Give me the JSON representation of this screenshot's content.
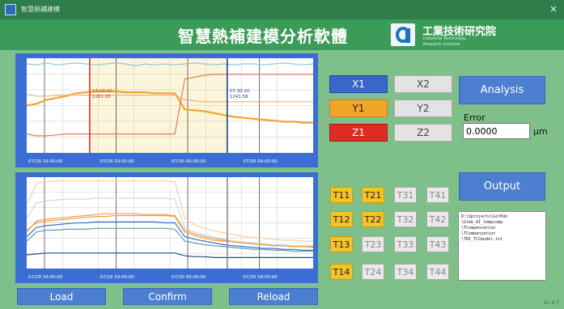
{
  "window": {
    "title": "智慧熱補建模",
    "close_glyph": "×"
  },
  "header": {
    "app_title": "智慧熱補建模分析軟體",
    "org_name": "工業技術研究院",
    "org_en_line1": "Industrial Technology",
    "org_en_line2": "Research Institute"
  },
  "axis_buttons": {
    "x1": "X1",
    "x2": "X2",
    "y1": "Y1",
    "y2": "Y2",
    "z1": "Z1",
    "z2": "Z2"
  },
  "colors": {
    "x1": "#3867c8",
    "y1": "#f2a52a",
    "z1": "#e02b24",
    "active_t": "#f2c32a",
    "button": "#4c7fd0"
  },
  "analysis_label": "Analysis",
  "error": {
    "label": "Error",
    "value": "0.0000",
    "unit": "μm"
  },
  "output_label": "Output",
  "output_lines": [
    "D:\\Sprojects\\GitHub",
    "\\Gtek_AI_tempcomp",
    "\\TCompensation",
    "\\TCompensation",
    "\\TRI_TCCmodel.txt"
  ],
  "t_buttons": [
    {
      "label": "T11",
      "active": true
    },
    {
      "label": "T21",
      "active": true
    },
    {
      "label": "T31",
      "active": false
    },
    {
      "label": "T41",
      "active": false
    },
    {
      "label": "T12",
      "active": true
    },
    {
      "label": "T22",
      "active": true
    },
    {
      "label": "T32",
      "active": false
    },
    {
      "label": "T42",
      "active": false
    },
    {
      "label": "T13",
      "active": true
    },
    {
      "label": "T23",
      "active": false
    },
    {
      "label": "T33",
      "active": false
    },
    {
      "label": "T43",
      "active": false
    },
    {
      "label": "T14",
      "active": true
    },
    {
      "label": "T24",
      "active": false
    },
    {
      "label": "T34",
      "active": false
    },
    {
      "label": "T44",
      "active": false
    }
  ],
  "bottom_buttons": {
    "load": "Load",
    "confirm": "Confirm",
    "reload": "Reload"
  },
  "version": "V1.0.7",
  "chart_data": [
    {
      "type": "line",
      "x_tick_labels": [
        "07/29 16:00:00",
        "07/29 20:00:00",
        "07/30 00:00:00",
        "07/30 04:00:00"
      ],
      "highlight_range": [
        0.22,
        0.7
      ],
      "cursors": [
        {
          "pos": 0.22,
          "color": "#e02b24",
          "label_time": "13:22:20",
          "label_value": "1261.05"
        },
        {
          "pos": 0.7,
          "color": "#1f3f8c",
          "label_time": "07:30:20",
          "label_value": "1241.58"
        }
      ],
      "series": [
        {
          "color": "#8fc6df",
          "values": [
            0.94,
            0.93,
            0.95,
            0.93,
            0.94,
            0.95,
            0.94,
            0.93,
            0.94,
            0.95,
            0.94,
            0.92,
            0.94,
            0.93,
            0.94,
            0.93,
            0.94,
            0.95,
            0.94,
            0.93,
            0.94,
            0.93,
            0.94,
            0.94,
            0.93,
            0.94,
            0.95,
            0.94,
            0.93,
            0.94
          ]
        },
        {
          "color": "#f2a52a",
          "values": [
            0.5,
            0.52,
            0.56,
            0.58,
            0.6,
            0.63,
            0.64,
            0.65,
            0.65,
            0.65,
            0.64,
            0.64,
            0.64,
            0.63,
            0.63,
            0.63,
            0.46,
            0.45,
            0.44,
            0.42,
            0.4,
            0.38,
            0.37,
            0.36,
            0.35,
            0.34,
            0.33,
            0.33,
            0.32,
            0.32
          ]
        },
        {
          "color": "#e07a5f",
          "values": [
            0.2,
            0.18,
            0.18,
            0.19,
            0.2,
            0.2,
            0.2,
            0.2,
            0.2,
            0.2,
            0.2,
            0.2,
            0.2,
            0.2,
            0.2,
            0.2,
            0.78,
            0.8,
            0.82,
            0.83,
            0.83,
            0.83,
            0.83,
            0.83,
            0.83,
            0.83,
            0.83,
            0.83,
            0.83,
            0.83
          ]
        },
        {
          "color": "#e8b27a",
          "values": [
            0.62,
            0.6,
            0.6,
            0.61,
            0.61,
            0.61,
            0.61,
            0.61,
            0.61,
            0.61,
            0.61,
            0.61,
            0.61,
            0.61,
            0.61,
            0.61,
            0.56,
            0.55,
            0.54,
            0.54,
            0.54,
            0.54,
            0.54,
            0.54,
            0.54,
            0.54,
            0.54,
            0.54,
            0.54,
            0.54
          ]
        }
      ]
    },
    {
      "type": "line",
      "x_tick_labels": [
        "07/29 16:00:00",
        "07/29 20:00:00",
        "07/30 00:00:00",
        "07/30 04:00:00"
      ],
      "cursors": [
        {
          "pos": 0.7,
          "color": "#888888"
        }
      ],
      "series": [
        {
          "color": "#f7cfa0",
          "values": [
            0.7,
            0.93,
            0.95,
            0.96,
            0.96,
            0.96,
            0.96,
            0.96,
            0.96,
            0.96,
            0.96,
            0.96,
            0.96,
            0.96,
            0.96,
            0.95,
            0.55,
            0.48,
            0.44,
            0.41,
            0.39,
            0.37,
            0.35,
            0.34,
            0.33,
            0.32,
            0.31,
            0.31,
            0.3,
            0.3
          ]
        },
        {
          "color": "#c9d7ea",
          "values": [
            0.55,
            0.72,
            0.74,
            0.75,
            0.76,
            0.76,
            0.76,
            0.77,
            0.77,
            0.77,
            0.77,
            0.77,
            0.77,
            0.77,
            0.77,
            0.76,
            0.45,
            0.4,
            0.37,
            0.34,
            0.32,
            0.3,
            0.29,
            0.28,
            0.27,
            0.26,
            0.26,
            0.25,
            0.25,
            0.25
          ]
        },
        {
          "color": "#ef9a6a",
          "values": [
            0.4,
            0.52,
            0.54,
            0.55,
            0.56,
            0.57,
            0.58,
            0.59,
            0.6,
            0.6,
            0.6,
            0.6,
            0.59,
            0.59,
            0.59,
            0.58,
            0.42,
            0.38,
            0.35,
            0.33,
            0.31,
            0.29,
            0.28,
            0.27,
            0.26,
            0.25,
            0.25,
            0.24,
            0.24,
            0.23
          ]
        },
        {
          "color": "#3b6ed3",
          "values": [
            0.35,
            0.45,
            0.47,
            0.48,
            0.49,
            0.5,
            0.5,
            0.51,
            0.51,
            0.51,
            0.51,
            0.51,
            0.51,
            0.51,
            0.5,
            0.5,
            0.35,
            0.32,
            0.3,
            0.28,
            0.26,
            0.25,
            0.24,
            0.23,
            0.22,
            0.22,
            0.21,
            0.21,
            0.2,
            0.2
          ]
        },
        {
          "color": "#5aa0a0",
          "values": [
            0.3,
            0.4,
            0.42,
            0.42,
            0.43,
            0.43,
            0.43,
            0.44,
            0.44,
            0.44,
            0.44,
            0.44,
            0.44,
            0.44,
            0.44,
            0.43,
            0.3,
            0.28,
            0.26,
            0.25,
            0.24,
            0.23,
            0.22,
            0.21,
            0.21,
            0.2,
            0.2,
            0.19,
            0.19,
            0.19
          ]
        },
        {
          "color": "#2e4a80",
          "values": [
            0.15,
            0.16,
            0.17,
            0.17,
            0.17,
            0.17,
            0.17,
            0.17,
            0.17,
            0.17,
            0.17,
            0.17,
            0.17,
            0.17,
            0.17,
            0.17,
            0.14,
            0.13,
            0.13,
            0.12,
            0.12,
            0.12,
            0.12,
            0.12,
            0.12,
            0.12,
            0.12,
            0.12,
            0.12,
            0.12
          ]
        },
        {
          "color": "#f2a52a",
          "values": [
            0.42,
            0.5,
            0.52,
            0.53,
            0.54,
            0.55,
            0.56,
            0.57,
            0.57,
            0.58,
            0.58,
            0.58,
            0.58,
            0.58,
            0.58,
            0.57,
            0.4,
            0.36,
            0.33,
            0.31,
            0.3,
            0.29,
            0.28,
            0.27,
            0.26,
            0.25,
            0.25,
            0.24,
            0.24,
            0.24
          ]
        }
      ]
    }
  ]
}
